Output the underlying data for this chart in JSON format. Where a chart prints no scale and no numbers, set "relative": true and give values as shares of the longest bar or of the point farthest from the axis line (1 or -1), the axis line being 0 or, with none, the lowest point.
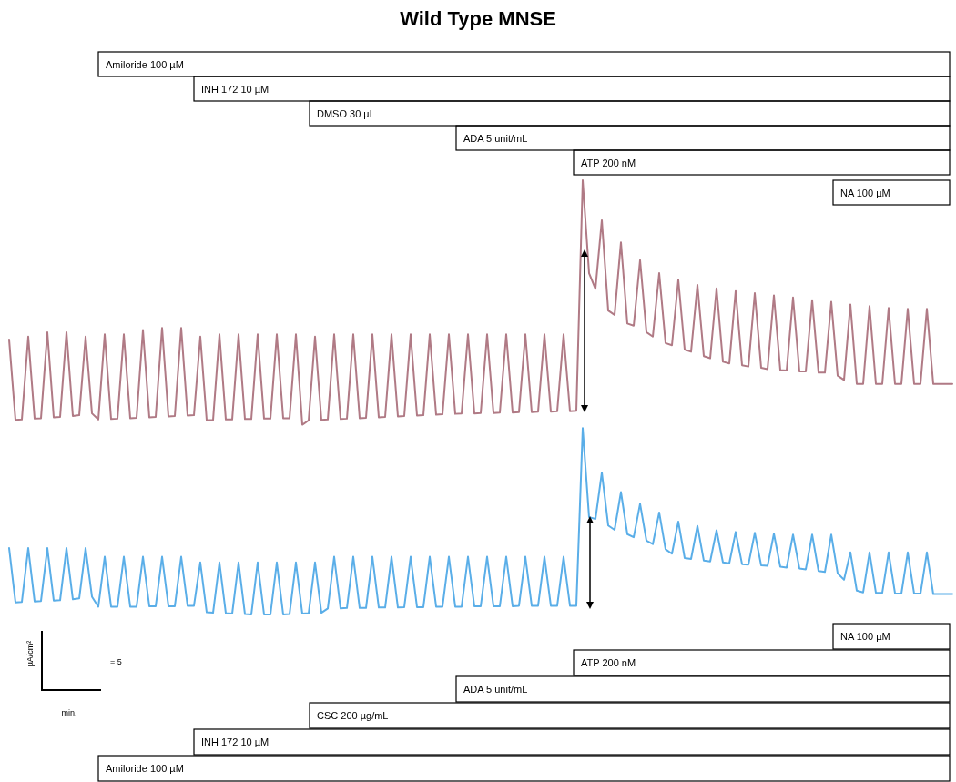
{
  "chart_data": {
    "type": "line",
    "title": "Wild Type MNSE",
    "relative": true,
    "categories": [
      null,
      null,
      null,
      null,
      null,
      null,
      null,
      null,
      null,
      null,
      null,
      null,
      null,
      null,
      null,
      null,
      null,
      null,
      null,
      null,
      null,
      null,
      null,
      null,
      null,
      null,
      null,
      null,
      null,
      null,
      null,
      null,
      null,
      null,
      null,
      null,
      null,
      null,
      null,
      null,
      null,
      null,
      null,
      null,
      null,
      null,
      null,
      null,
      null,
      null,
      null,
      null,
      null,
      null,
      null,
      null,
      null,
      null,
      null,
      null,
      null,
      null,
      null,
      null,
      null,
      null,
      null,
      null,
      null,
      null,
      null,
      null,
      null,
      null,
      null,
      null,
      null,
      null,
      null,
      null,
      null,
      null,
      null,
      null,
      null,
      null,
      null,
      null,
      null,
      null,
      null,
      null,
      null,
      null,
      null,
      null,
      null,
      null,
      null,
      null,
      null,
      null,
      null,
      null,
      null,
      null,
      null,
      null,
      null,
      null,
      null,
      null,
      null,
      null,
      null,
      null,
      null,
      null,
      null,
      null,
      null,
      null,
      null,
      null,
      null,
      null,
      null,
      null,
      null,
      null,
      null,
      null,
      null,
      null,
      null,
      null,
      null,
      null,
      null,
      null,
      null,
      null,
      null,
      null,
      null,
      null,
      null,
      null,
      null
    ],
    "series": [
      {
        "color": "#b07a85",
        "values": [
          0.633,
          0.448,
          0.449,
          0.64,
          0.451,
          0.452,
          0.65,
          0.454,
          0.455,
          0.65,
          0.457,
          0.459,
          0.64,
          0.463,
          0.449,
          0.645,
          0.45,
          0.451,
          0.645,
          0.452,
          0.453,
          0.655,
          0.454,
          0.455,
          0.66,
          0.456,
          0.457,
          0.66,
          0.458,
          0.459,
          0.64,
          0.447,
          0.448,
          0.645,
          0.449,
          0.449,
          0.645,
          0.45,
          0.45,
          0.645,
          0.451,
          0.451,
          0.645,
          0.452,
          0.452,
          0.645,
          0.437,
          0.447,
          0.64,
          0.448,
          0.449,
          0.645,
          0.45,
          0.451,
          0.645,
          0.452,
          0.453,
          0.645,
          0.454,
          0.455,
          0.645,
          0.456,
          0.457,
          0.645,
          0.458,
          0.459,
          0.645,
          0.46,
          0.461,
          0.645,
          0.462,
          0.463,
          0.645,
          0.463,
          0.464,
          0.645,
          0.464,
          0.465,
          0.645,
          0.465,
          0.466,
          0.645,
          0.466,
          0.467,
          0.645,
          0.467,
          0.468,
          0.645,
          0.468,
          0.469,
          1.0,
          0.786,
          0.75,
          0.908,
          0.7,
          0.69,
          0.857,
          0.67,
          0.665,
          0.816,
          0.65,
          0.64,
          0.786,
          0.625,
          0.62,
          0.771,
          0.61,
          0.605,
          0.759,
          0.595,
          0.59,
          0.751,
          0.582,
          0.578,
          0.745,
          0.574,
          0.571,
          0.74,
          0.568,
          0.565,
          0.735,
          0.563,
          0.562,
          0.73,
          0.56,
          0.56,
          0.724,
          0.557,
          0.557,
          0.72,
          0.55,
          0.54,
          0.714,
          0.531,
          0.531,
          0.71,
          0.531,
          0.531,
          0.706,
          0.531,
          0.531,
          0.704,
          0.531,
          0.531,
          0.704,
          0.531,
          0.531,
          0.531,
          0.531
        ]
      },
      {
        "color": "#5aaee8",
        "values": [
          0.153,
          0.028,
          0.029,
          0.153,
          0.03,
          0.031,
          0.153,
          0.032,
          0.033,
          0.153,
          0.035,
          0.037,
          0.153,
          0.041,
          0.018,
          0.133,
          0.018,
          0.018,
          0.133,
          0.018,
          0.018,
          0.133,
          0.019,
          0.019,
          0.133,
          0.019,
          0.019,
          0.133,
          0.02,
          0.02,
          0.12,
          0.005,
          0.004,
          0.12,
          0.003,
          0.002,
          0.12,
          0.001,
          0.0,
          0.12,
          0.0,
          0.0,
          0.12,
          0.0,
          0.001,
          0.12,
          0.002,
          0.003,
          0.12,
          0.004,
          0.014,
          0.133,
          0.014,
          0.015,
          0.133,
          0.015,
          0.015,
          0.133,
          0.016,
          0.016,
          0.133,
          0.016,
          0.017,
          0.133,
          0.017,
          0.017,
          0.133,
          0.018,
          0.018,
          0.133,
          0.018,
          0.018,
          0.133,
          0.019,
          0.019,
          0.133,
          0.019,
          0.019,
          0.133,
          0.019,
          0.02,
          0.133,
          0.02,
          0.02,
          0.133,
          0.02,
          0.02,
          0.133,
          0.02,
          0.02,
          0.429,
          0.224,
          0.22,
          0.327,
          0.205,
          0.195,
          0.282,
          0.185,
          0.178,
          0.255,
          0.17,
          0.162,
          0.235,
          0.15,
          0.14,
          0.214,
          0.13,
          0.128,
          0.204,
          0.124,
          0.122,
          0.194,
          0.12,
          0.118,
          0.19,
          0.116,
          0.115,
          0.188,
          0.113,
          0.112,
          0.186,
          0.11,
          0.108,
          0.184,
          0.106,
          0.104,
          0.184,
          0.1,
          0.098,
          0.184,
          0.095,
          0.08,
          0.143,
          0.055,
          0.051,
          0.143,
          0.05,
          0.05,
          0.143,
          0.049,
          0.048,
          0.143,
          0.048,
          0.048,
          0.143,
          0.047,
          0.047,
          0.047,
          0.047
        ]
      }
    ],
    "annotations": [
      "Amiloride 100 µM",
      "INH 172 10 µM",
      "DMSO 30 µL",
      "ADA 5 unit/mL",
      "ATP 200 nM",
      "NA 100 µM",
      "NA 100 µM",
      "ATP 200 nM",
      "ADA 5 unit/mL",
      "CSC 200 µg/mL",
      "INH 172 10 µM",
      "Amiloride 100 µM",
      "µA/cm²",
      "= 5",
      "min."
    ]
  }
}
